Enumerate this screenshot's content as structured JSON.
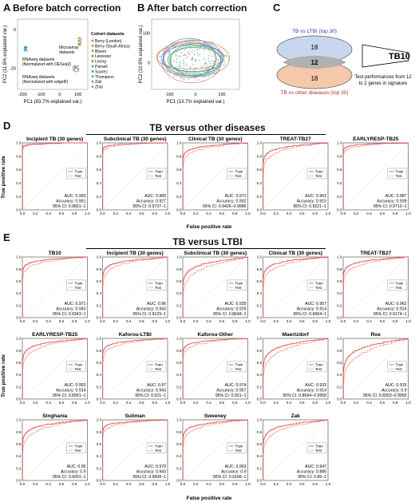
{
  "panels": {
    "A": {
      "letter": "A",
      "title": "Before batch correction",
      "xlabel": "PC1 (83.7% explained var.)",
      "ylabel": "PC2 (11.6% explained var.)",
      "xticks": [
        "-200",
        "-100",
        "0",
        "100"
      ],
      "yticks": [
        "-20",
        "0"
      ],
      "annotations": [
        "RNAseq datasets",
        "(Normalized with DESeq2)",
        "Microarray",
        "datasets",
        "RNAseq datasets",
        "(Normalized with edgeR)"
      ],
      "legend_title": "Cohort datasets",
      "legend": [
        {
          "name": "Berry (London)",
          "color": "#e0736b"
        },
        {
          "name": "Berry (South Africa)",
          "color": "#c7893a"
        },
        {
          "name": "Bloom",
          "color": "#a79b2c"
        },
        {
          "name": "Leicester",
          "color": "#6aa73a"
        },
        {
          "name": "Leong",
          "color": "#2fae72"
        },
        {
          "name": "Parnell",
          "color": "#2bb2a0"
        },
        {
          "name": "Suarez",
          "color": "#27a8c9"
        },
        {
          "name": "Thompson",
          "color": "#4f8fde"
        },
        {
          "name": "Zak",
          "color": "#9f7de0"
        },
        {
          "name": "Zhai",
          "color": "#d36cb9"
        }
      ]
    },
    "B": {
      "letter": "B",
      "title": "After batch correction",
      "xlabel": "PC1 (13.7% explained var.)",
      "ylabel": "PC2 (10.9% explained var.)",
      "xticks": [
        "-100",
        "0",
        "100"
      ],
      "yticks": [
        "0",
        "100"
      ]
    },
    "C": {
      "letter": "C",
      "top_label": "TB vs LTBI (top 30)",
      "bottom_label": "TB vs other diseases (top 30)",
      "top_value": "18",
      "middle_value": "12",
      "bottom_value": "18",
      "signature": "TB10",
      "note_line1": "Test performances from 12",
      "note_line2": "to 2 genes in signature"
    },
    "D": {
      "letter": "D",
      "section_title": "TB versus other diseases"
    },
    "E": {
      "letter": "E",
      "section_title": "TB versus LTBI"
    }
  },
  "axes": {
    "ylabel": "True positive rate",
    "xlabel": "False positive rate",
    "xticks": [
      "0.0",
      "0.2",
      "0.4",
      "0.6",
      "0.8",
      "1.0"
    ],
    "yticks": [
      "0.0",
      "0.2",
      "0.4",
      "0.6",
      "0.8",
      "1.0"
    ],
    "legend_train": "Train",
    "legend_test": "Test",
    "train_color": "#e04a4a",
    "test_color": "#f2a8a8"
  },
  "chart_data": [
    {
      "type": "line",
      "group": "D",
      "title": "Incipient TB (30 genes)",
      "auc": "AUC: 0.993",
      "accuracy": "Accuracy: 0.951",
      "ci": "95% CI: 0.9831−1"
    },
    {
      "type": "line",
      "group": "D",
      "title": "Subclinical TB (30 genes)",
      "auc": "AUC: 0.989",
      "accuracy": "Accuracy: 0.927",
      "ci": "95% CI: 0.9737−1"
    },
    {
      "type": "line",
      "group": "D",
      "title": "Clinical TB (30 genes)",
      "auc": "AUC: 0.971",
      "accuracy": "Accuracy: 0.902",
      "ci": "95% CI: 0.9426−0.9986"
    },
    {
      "type": "line",
      "group": "D",
      "title": "TREAT-TB27",
      "auc": "AUC: 0.963",
      "accuracy": "Accuracy: 0.915",
      "ci": "95% CI: 0.9221−1"
    },
    {
      "type": "line",
      "group": "D",
      "title": "EARLYRESP-TB25",
      "auc": "AUC: 0.987",
      "accuracy": "Accuracy: 0.939",
      "ci": "95% CI: 0.9713−1"
    },
    {
      "type": "line",
      "group": "E",
      "title": "TB10",
      "auc": "AUC: 0.971",
      "accuracy": "Accuracy: 0.943",
      "ci": "95% CI: 0.9343−1"
    },
    {
      "type": "line",
      "group": "E",
      "title": "Incipient TB (30 genes)",
      "auc": "AUC: 0.96",
      "accuracy": "Accuracy: 0.943",
      "ci": "95% CI: 0.9129−1"
    },
    {
      "type": "line",
      "group": "E",
      "title": "Subclinical TB (30 genes)",
      "auc": "AUC: 0.935",
      "accuracy": "Accuracy: 0.929",
      "ci": "95% CI: 0.8648−1"
    },
    {
      "type": "line",
      "group": "E",
      "title": "Clinical TB (30 genes)",
      "auc": "AUC: 0.957",
      "accuracy": "Accuracy: 0.914",
      "ci": "95% CI: 0.9064−1"
    },
    {
      "type": "line",
      "group": "E",
      "title": "TREAT-TB27",
      "auc": "AUC: 0.962",
      "accuracy": "Accuracy: 0.914",
      "ci": "95% CI: 0.9174−1"
    },
    {
      "type": "line",
      "group": "E",
      "title": "EARLYRESP-TB25",
      "auc": "AUC: 0.953",
      "accuracy": "Accuracy: 0.914",
      "ci": "95% CI: 0.8991−1"
    },
    {
      "type": "line",
      "group": "E",
      "title": "Kaforou-LTBI",
      "auc": "AUC: 0.97",
      "accuracy": "Accuracy: 0.943",
      "ci": "95% CI: 0.921−1"
    },
    {
      "type": "line",
      "group": "E",
      "title": "Kaforou-Other",
      "auc": "AUC: 0.974",
      "accuracy": "Accuracy: 0.957",
      "ci": "95% CI: 0.931−1"
    },
    {
      "type": "line",
      "group": "E",
      "title": "Maertzdorf",
      "auc": "AUC: 0.933",
      "accuracy": "Accuracy: 0.914",
      "ci": "95% CI: 0.8694−0.9958"
    },
    {
      "type": "line",
      "group": "E",
      "title": "Roe",
      "auc": "AUC: 0.915",
      "accuracy": "Accuracy: 0.9",
      "ci": "95% CI: 0.8353−0.9955"
    },
    {
      "type": "line",
      "group": "E",
      "title": "Singhania",
      "auc": "AUC: 0.95",
      "accuracy": "Accuracy: 0.9",
      "ci": "95% CI: 0.9001−1"
    },
    {
      "type": "line",
      "group": "E",
      "title": "Suliman",
      "auc": "AUC: 0.979",
      "accuracy": "Accuracy: 0.943",
      "ci": "95% CI: 0.9508−1"
    },
    {
      "type": "line",
      "group": "E",
      "title": "Sweeney",
      "auc": "AUC: 0.963",
      "accuracy": "Accuracy: 0.9",
      "ci": "95% CI: 0.9198−1"
    },
    {
      "type": "line",
      "group": "E",
      "title": "Zak",
      "auc": "AUC: 0.947",
      "accuracy": "Accuracy: 0.886",
      "ci": "95% CI: 0.89−1"
    }
  ]
}
